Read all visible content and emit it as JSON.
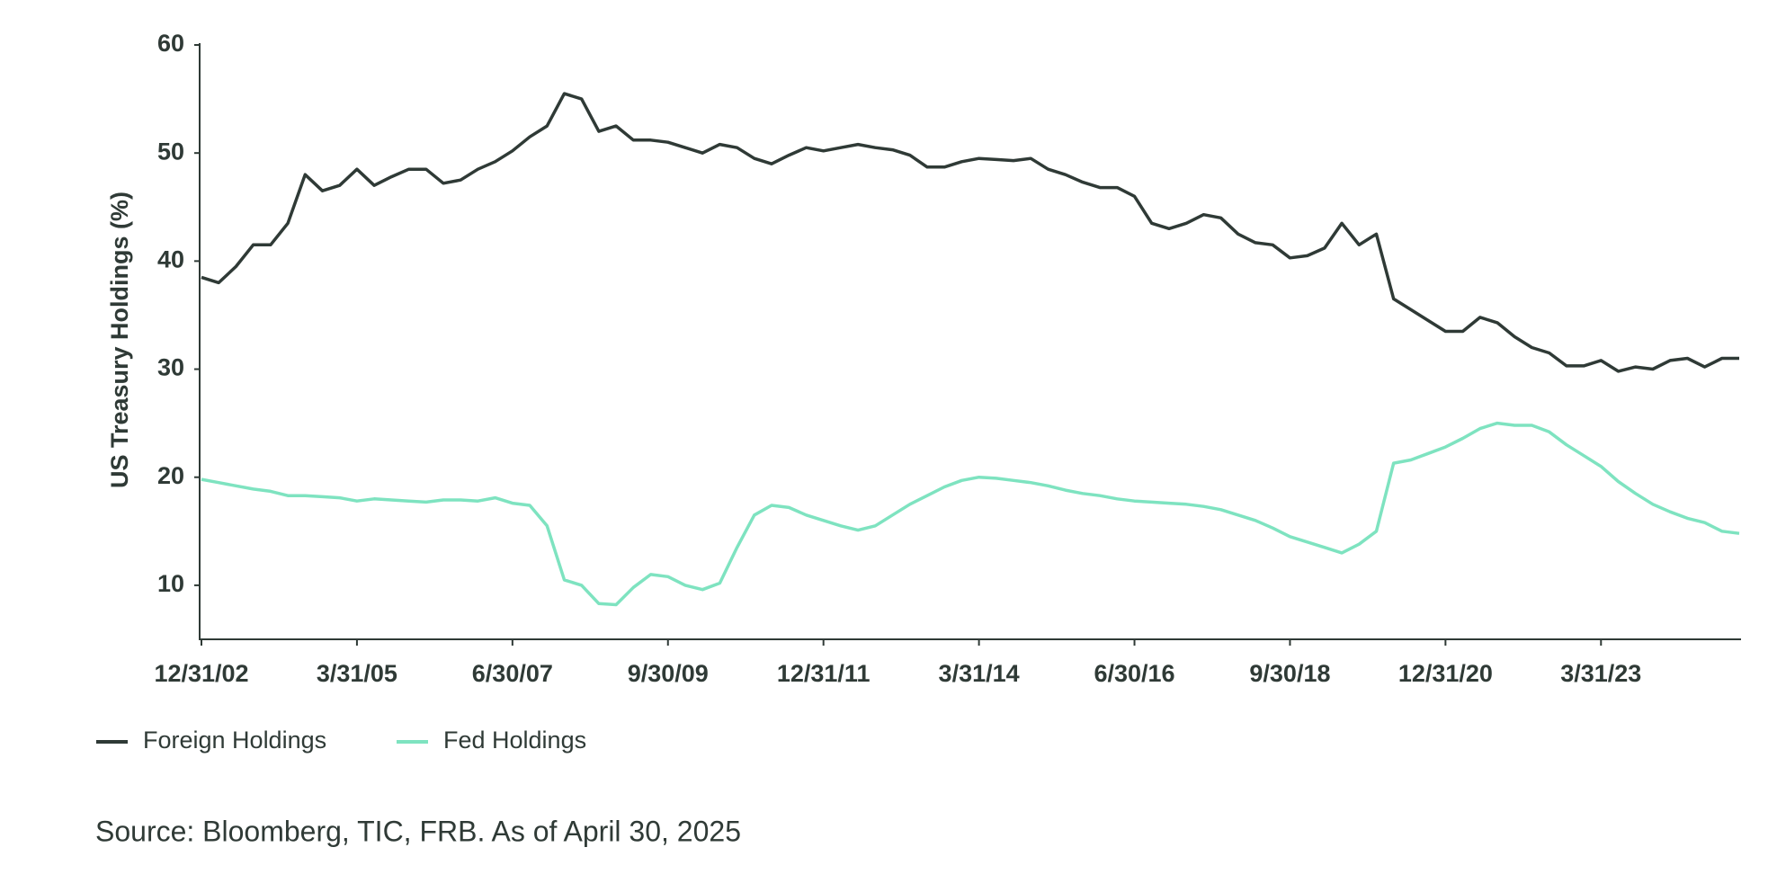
{
  "chart_data": {
    "type": "line",
    "y_label": "US Treasury Holdings (%)",
    "source": "Source: Bloomberg, TIC, FRB. As of April 30, 2025",
    "categories": [
      "12/31/02",
      null,
      null,
      null,
      null,
      null,
      null,
      null,
      null,
      "3/31/05",
      null,
      null,
      null,
      null,
      null,
      null,
      null,
      null,
      "6/30/07",
      null,
      null,
      null,
      null,
      null,
      null,
      null,
      null,
      "9/30/09",
      null,
      null,
      null,
      null,
      null,
      null,
      null,
      null,
      "12/31/11",
      null,
      null,
      null,
      null,
      null,
      null,
      null,
      null,
      "3/31/14",
      null,
      null,
      null,
      null,
      null,
      null,
      null,
      null,
      "6/30/16",
      null,
      null,
      null,
      null,
      null,
      null,
      null,
      null,
      "9/30/18",
      null,
      null,
      null,
      null,
      null,
      null,
      null,
      null,
      "12/31/20",
      null,
      null,
      null,
      null,
      null,
      null,
      null,
      null,
      "3/31/23",
      null,
      null,
      null,
      null,
      null,
      null,
      null,
      null
    ],
    "series": [
      {
        "name": "Foreign Holdings",
        "color": "#2f3a36",
        "values": [
          38.5,
          38.0,
          39.5,
          41.5,
          41.5,
          43.5,
          48,
          46.5,
          47,
          48.5,
          47,
          47.8,
          48.5,
          48.5,
          47.2,
          47.5,
          48.5,
          49.2,
          50.2,
          51.5,
          52.5,
          55.5,
          55,
          52,
          52.5,
          51.2,
          51.2,
          51,
          50.5,
          50,
          50.8,
          50.5,
          49.5,
          49,
          49.8,
          50.5,
          50.2,
          50.5,
          50.8,
          50.5,
          50.3,
          49.8,
          48.7,
          48.7,
          49.2,
          49.5,
          49.4,
          49.3,
          49.5,
          48.5,
          48,
          47.3,
          46.8,
          46.8,
          46,
          43.5,
          43,
          43.5,
          44.3,
          44,
          42.5,
          41.7,
          41.5,
          40.3,
          40.5,
          41.2,
          43.5,
          41.5,
          42.5,
          36.5,
          35.5,
          34.5,
          33.5,
          33.5,
          34.8,
          34.3,
          33,
          32,
          31.5,
          30.3,
          30.3,
          30.8,
          29.8,
          30.2,
          30,
          30.8,
          31,
          30.2,
          31,
          31
        ]
      },
      {
        "name": "Fed Holdings",
        "color": "#7ee3c0",
        "values": [
          19.8,
          19.5,
          19.2,
          18.9,
          18.7,
          18.3,
          18.3,
          18.2,
          18.1,
          17.8,
          18,
          17.9,
          17.8,
          17.7,
          17.9,
          17.9,
          17.8,
          18.1,
          17.6,
          17.4,
          15.5,
          10.5,
          10,
          8.3,
          8.2,
          9.8,
          11,
          10.8,
          10,
          9.6,
          10.2,
          13.5,
          16.5,
          17.4,
          17.2,
          16.5,
          16,
          15.5,
          15.1,
          15.5,
          16.5,
          17.5,
          18.3,
          19.1,
          19.7,
          20,
          19.9,
          19.7,
          19.5,
          19.2,
          18.8,
          18.5,
          18.3,
          18,
          17.8,
          17.7,
          17.6,
          17.5,
          17.3,
          17,
          16.5,
          16,
          15.3,
          14.5,
          14,
          13.5,
          13,
          13.8,
          15,
          21.3,
          21.6,
          22.2,
          22.8,
          23.6,
          24.5,
          25,
          24.8,
          24.8,
          24.2,
          23,
          22,
          21,
          19.6,
          18.5,
          17.5,
          16.8,
          16.2,
          15.8,
          15,
          14.8
        ]
      }
    ],
    "ylim": [
      5,
      60
    ],
    "yticks": [
      10,
      20,
      30,
      40,
      50,
      60
    ],
    "grid": false,
    "legend": "bottom-left"
  }
}
